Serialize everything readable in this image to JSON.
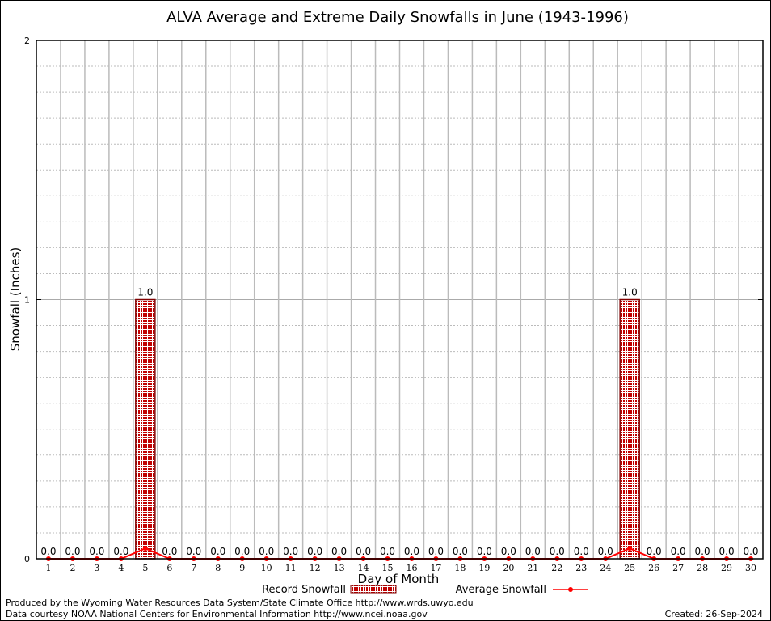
{
  "chart_data": {
    "type": "bar",
    "title": "ALVA Average and Extreme Daily Snowfalls in June (1943-1996)",
    "xlabel": "Day of Month",
    "ylabel": "Snowfall (Inches)",
    "ylim": [
      0,
      2
    ],
    "yticks": [
      "0",
      "1",
      "2"
    ],
    "categories": [
      "1",
      "2",
      "3",
      "4",
      "5",
      "6",
      "7",
      "8",
      "9",
      "10",
      "11",
      "12",
      "13",
      "14",
      "15",
      "16",
      "17",
      "18",
      "19",
      "20",
      "21",
      "22",
      "23",
      "24",
      "25",
      "26",
      "27",
      "28",
      "29",
      "30"
    ],
    "grid": true,
    "legend_placement": "bottom",
    "series": [
      {
        "name": "Record Snowfall",
        "type": "bar",
        "color": "#cc0000",
        "values": [
          0,
          0,
          0,
          0,
          1.0,
          0,
          0,
          0,
          0,
          0,
          0,
          0,
          0,
          0,
          0,
          0,
          0,
          0,
          0,
          0,
          0,
          0,
          0,
          0,
          1.0,
          0,
          0,
          0,
          0,
          0
        ],
        "labels": [
          "0.0",
          "0.0",
          "0.0",
          "0.0",
          "1.0",
          "0.0",
          "0.0",
          "0.0",
          "0.0",
          "0.0",
          "0.0",
          "0.0",
          "0.0",
          "0.0",
          "0.0",
          "0.0",
          "0.0",
          "0.0",
          "0.0",
          "0.0",
          "0.0",
          "0.0",
          "0.0",
          "0.0",
          "1.0",
          "0.0",
          "0.0",
          "0.0",
          "0.0",
          "0.0"
        ]
      },
      {
        "name": "Average Snowfall",
        "type": "line",
        "color": "#ff0000",
        "values": [
          0,
          0,
          0,
          0,
          0.04,
          0,
          0,
          0,
          0,
          0,
          0,
          0,
          0,
          0,
          0,
          0,
          0,
          0,
          0,
          0,
          0,
          0,
          0,
          0,
          0.04,
          0,
          0,
          0,
          0,
          0
        ]
      }
    ]
  },
  "footer": {
    "produced_by": "Produced by the Wyoming Water Resources Data System/State Climate Office http://www.wrds.uwyo.edu",
    "courtesy": "Data courtesy NOAA National Centers for Environmental Information http://www.ncei.noaa.gov",
    "created": "Created: 26-Sep-2024"
  }
}
